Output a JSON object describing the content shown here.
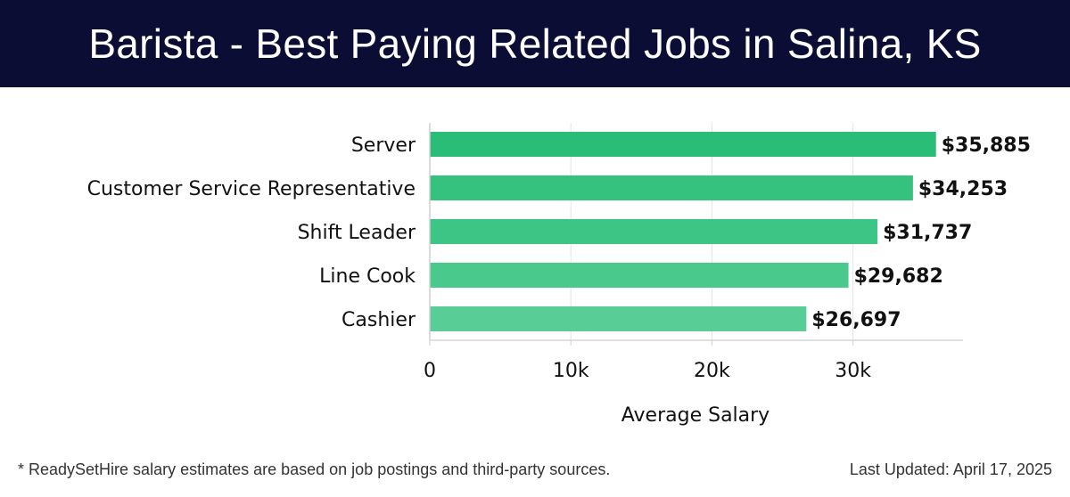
{
  "header": {
    "title": "Barista - Best Paying Related Jobs in Salina, KS"
  },
  "chart_data": {
    "type": "bar",
    "orientation": "horizontal",
    "title": "Barista - Best Paying Related Jobs in Salina, KS",
    "categories": [
      "Server",
      "Customer Service Representative",
      "Shift Leader",
      "Line Cook",
      "Cashier"
    ],
    "values": [
      35885,
      34253,
      31737,
      29682,
      26697
    ],
    "value_labels": [
      "$35,885",
      "$34,253",
      "$31,737",
      "$29,682",
      "$26,697"
    ],
    "xlabel": "Average Salary",
    "ylabel": "",
    "xlim": [
      0,
      37800
    ],
    "ticks": [
      0,
      10000,
      20000,
      30000
    ],
    "tick_labels": [
      "0",
      "10k",
      "20k",
      "30k"
    ],
    "grid": true,
    "bar_colors": [
      "#2abd77",
      "#34c27e",
      "#3dc585",
      "#4ac98d",
      "#58cd96"
    ]
  },
  "footer": {
    "note": "* ReadySetHire salary estimates are based on job postings and third-party sources.",
    "updated": "Last Updated: April 17, 2025"
  }
}
